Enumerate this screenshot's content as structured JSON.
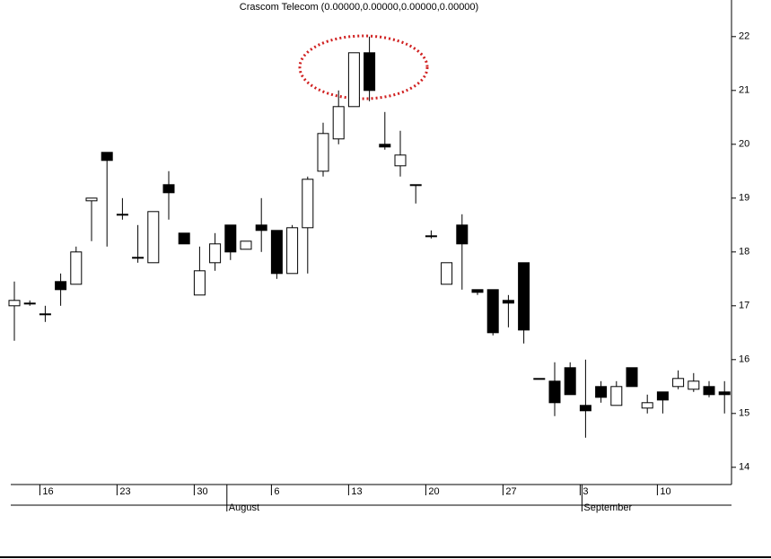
{
  "chart_data": {
    "type": "candlestick",
    "title": "Crascom Telecom (0.00000,0.00000,0.00000,0.00000)",
    "categories": [
      null,
      null,
      "16",
      null,
      null,
      null,
      null,
      "23",
      null,
      null,
      null,
      null,
      "30",
      null,
      null,
      null,
      null,
      "6",
      null,
      null,
      null,
      null,
      "13",
      null,
      null,
      null,
      null,
      "20",
      null,
      null,
      null,
      null,
      "27",
      null,
      null,
      null,
      null,
      "3",
      null,
      null,
      null,
      null,
      "10",
      null,
      null,
      null,
      null
    ],
    "month_categories": [
      null,
      null,
      null,
      null,
      null,
      null,
      null,
      null,
      null,
      null,
      null,
      null,
      null,
      null,
      "August",
      null,
      null,
      null,
      null,
      null,
      null,
      null,
      null,
      null,
      null,
      null,
      null,
      null,
      null,
      null,
      null,
      null,
      null,
      null,
      null,
      null,
      null,
      "September",
      null,
      null,
      null,
      null,
      null,
      null,
      null,
      null,
      null
    ],
    "open": [
      17.0,
      17.05,
      16.85,
      17.45,
      17.4,
      18.95,
      19.85,
      18.7,
      17.9,
      17.8,
      19.25,
      18.35,
      17.2,
      17.8,
      18.5,
      18.05,
      18.5,
      18.4,
      17.6,
      18.45,
      19.5,
      20.1,
      20.7,
      21.7,
      20.0,
      19.6,
      19.25,
      18.3,
      17.4,
      18.5,
      17.3,
      17.3,
      17.1,
      17.8,
      15.65,
      15.6,
      15.85,
      15.15,
      15.5,
      15.15,
      15.85,
      15.1,
      15.4,
      15.5,
      15.45,
      15.5,
      15.4
    ],
    "high": [
      17.45,
      17.1,
      17.0,
      17.6,
      18.1,
      19.0,
      19.85,
      19.0,
      18.5,
      18.75,
      19.5,
      18.35,
      18.1,
      18.35,
      18.5,
      18.2,
      19.0,
      18.4,
      18.5,
      19.4,
      20.4,
      21.0,
      21.7,
      22.0,
      20.6,
      20.25,
      19.25,
      18.4,
      17.8,
      18.7,
      17.3,
      17.3,
      17.2,
      17.8,
      15.65,
      15.95,
      15.95,
      16.0,
      15.6,
      15.6,
      15.85,
      15.35,
      15.4,
      15.8,
      15.75,
      15.6,
      15.6
    ],
    "low": [
      16.35,
      17.0,
      16.7,
      17.0,
      17.4,
      18.2,
      18.1,
      18.6,
      17.8,
      17.8,
      18.6,
      18.15,
      17.2,
      17.65,
      17.85,
      18.05,
      18.0,
      17.5,
      17.6,
      17.6,
      19.4,
      20.0,
      20.7,
      20.8,
      19.9,
      19.4,
      18.9,
      18.25,
      17.4,
      17.3,
      17.2,
      16.45,
      16.6,
      16.3,
      15.65,
      14.95,
      15.35,
      14.55,
      15.2,
      15.15,
      15.5,
      15.0,
      15.0,
      15.45,
      15.4,
      15.3,
      15.0
    ],
    "close": [
      17.1,
      17.05,
      16.85,
      17.3,
      18.0,
      19.0,
      19.7,
      18.7,
      17.9,
      18.75,
      19.1,
      18.15,
      17.65,
      18.15,
      18.0,
      18.2,
      18.4,
      17.6,
      18.45,
      19.35,
      20.2,
      20.7,
      21.7,
      21.0,
      19.95,
      19.8,
      19.25,
      18.3,
      17.8,
      18.15,
      17.25,
      16.5,
      17.05,
      16.55,
      15.65,
      15.2,
      15.35,
      15.05,
      15.3,
      15.5,
      15.5,
      15.2,
      15.25,
      15.65,
      15.6,
      15.35,
      15.35
    ],
    "up_color": "#ffffff",
    "down_color": "#000000",
    "ylim": [
      13.68,
      22.68
    ],
    "yticks": [
      14,
      15,
      16,
      17,
      18,
      19,
      20,
      21,
      22
    ]
  }
}
